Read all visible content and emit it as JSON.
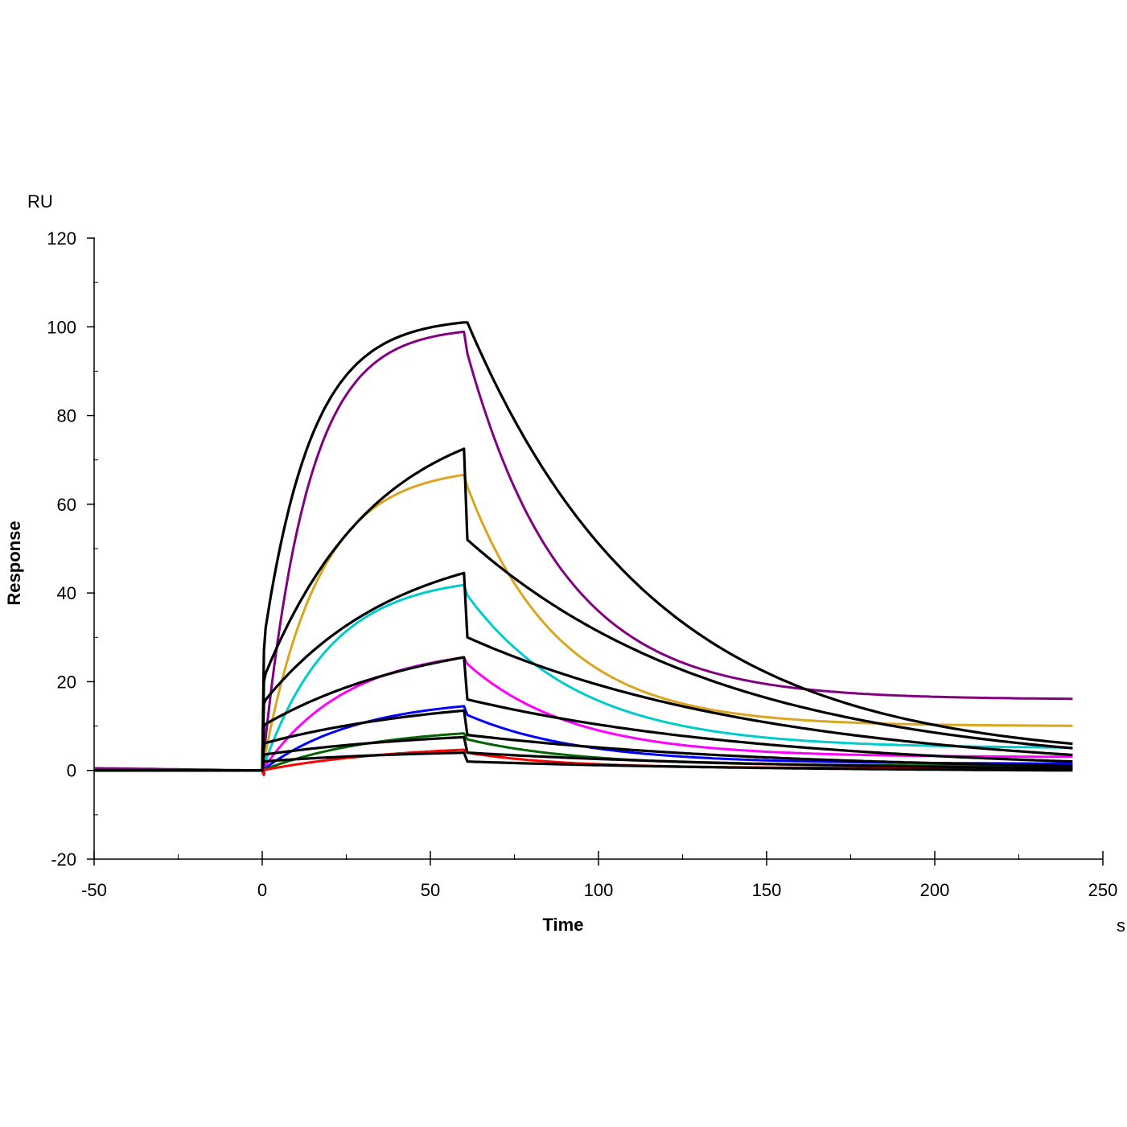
{
  "chart_data": {
    "type": "line",
    "title": "",
    "xlabel": "Time",
    "ylabel": "Response",
    "x_unit": "s",
    "y_unit": "RU",
    "xlim": [
      -50,
      250
    ],
    "ylim": [
      -20,
      120
    ],
    "x_ticks": [
      -50,
      0,
      50,
      100,
      150,
      200,
      250
    ],
    "x_tick_labels": [
      "-50",
      "0",
      "50",
      "100",
      "150",
      "200",
      "250"
    ],
    "x_minor_ticks": [
      -25,
      25,
      75,
      125,
      175,
      225
    ],
    "y_ticks": [
      -20,
      0,
      20,
      40,
      60,
      80,
      100,
      120
    ],
    "y_tick_labels": [
      "-20",
      "0",
      "20",
      "40",
      "60",
      "80",
      "100",
      "120"
    ],
    "y_minor_ticks": [
      -10,
      10,
      30,
      50,
      70,
      90,
      110
    ],
    "grid": false,
    "legend": "none",
    "association_start": 0,
    "dissociation_start": 60,
    "end_time": 241,
    "series": [
      {
        "name": "curve-purple",
        "color": "#800080",
        "kind": "data",
        "plateau": 100,
        "kon_rate": 0.075,
        "dissoc_start": 94,
        "baseline_end": 16,
        "koff": 0.035,
        "pre": 0.5
      },
      {
        "name": "curve-gold",
        "color": "#DAA520",
        "kind": "data",
        "plateau": 68.5,
        "kon_rate": 0.06,
        "dissoc_start": 64,
        "baseline_end": 10,
        "koff": 0.037,
        "pre": 0
      },
      {
        "name": "curve-cyan",
        "color": "#00CCCC",
        "kind": "data",
        "plateau": 44,
        "kon_rate": 0.05,
        "dissoc_start": 39.5,
        "baseline_end": 5,
        "koff": 0.03,
        "pre": 0
      },
      {
        "name": "curve-magenta",
        "color": "#FF00FF",
        "kind": "data",
        "plateau": 28,
        "kon_rate": 0.04,
        "dissoc_start": 24,
        "baseline_end": 3,
        "koff": 0.032,
        "pre": 0
      },
      {
        "name": "curve-blue",
        "color": "#0000FF",
        "kind": "data",
        "plateau": 16.5,
        "kon_rate": 0.035,
        "dissoc_start": 12.5,
        "baseline_end": 1.5,
        "koff": 0.03,
        "pre": 0
      },
      {
        "name": "curve-green",
        "color": "#006400",
        "kind": "data",
        "plateau": 10,
        "kon_rate": 0.03,
        "dissoc_start": 7,
        "baseline_end": 1,
        "koff": 0.03,
        "pre": 0
      },
      {
        "name": "curve-red",
        "color": "#FF0000",
        "kind": "data",
        "plateau": 6,
        "kon_rate": 0.025,
        "dissoc_start": 4,
        "baseline_end": 0.5,
        "koff": 0.035,
        "pre": 0
      },
      {
        "name": "fit-1",
        "color": "#000000",
        "kind": "fit",
        "jump": 27,
        "assoc_end": 101,
        "shape": 0.07,
        "dissoc_start": 101,
        "drop_to": 101,
        "koff": 0.018,
        "end_val": 6
      },
      {
        "name": "fit-2",
        "color": "#000000",
        "kind": "fit",
        "jump": 20,
        "assoc_end": 72.5,
        "shape": 0.03,
        "dissoc_start": 72.5,
        "drop_to": 52,
        "koff": 0.013,
        "end_val": 5
      },
      {
        "name": "fit-3",
        "color": "#000000",
        "kind": "fit",
        "jump": 15,
        "assoc_end": 44.5,
        "shape": 0.025,
        "dissoc_start": 44.5,
        "drop_to": 30,
        "koff": 0.011,
        "end_val": 3.5
      },
      {
        "name": "fit-4",
        "color": "#000000",
        "kind": "fit",
        "jump": 10,
        "assoc_end": 25.5,
        "shape": 0.02,
        "dissoc_start": 25.5,
        "drop_to": 16,
        "koff": 0.011,
        "end_val": 2
      },
      {
        "name": "fit-5",
        "color": "#000000",
        "kind": "fit",
        "jump": 6,
        "assoc_end": 13.5,
        "shape": 0.018,
        "dissoc_start": 13.5,
        "drop_to": 8,
        "koff": 0.011,
        "end_val": 1
      },
      {
        "name": "fit-6",
        "color": "#000000",
        "kind": "fit",
        "jump": 3.5,
        "assoc_end": 7.5,
        "shape": 0.018,
        "dissoc_start": 7.5,
        "drop_to": 4,
        "koff": 0.011,
        "end_val": 0.5
      },
      {
        "name": "fit-7",
        "color": "#000000",
        "kind": "fit",
        "jump": 2,
        "assoc_end": 4,
        "shape": 0.02,
        "dissoc_start": 4,
        "drop_to": 2,
        "koff": 0.011,
        "end_val": 0
      }
    ]
  }
}
